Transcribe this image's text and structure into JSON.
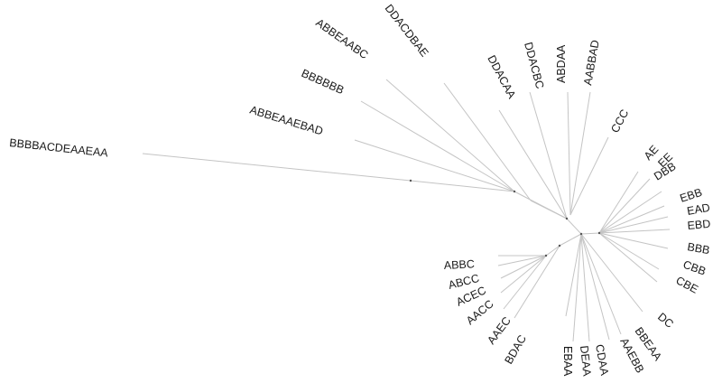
{
  "tree": {
    "type": "unrooted phylogenetic tree",
    "leaves": [
      "BBBBACDEAAEAA",
      "ABBEAAEBAD",
      "BBBBBB",
      "ABBEAABC",
      "DDACDBAE",
      "DDACAA",
      "DDACBC",
      "ABDAA",
      "AABBAD",
      "CCC",
      "AE",
      "EE",
      "DBB",
      "EBB",
      "EAD",
      "EBD",
      "BBB",
      "CBB",
      "CBE",
      "DC",
      "BBEAA",
      "AAEBB",
      "CDAA",
      "DEAA",
      "EBAA",
      "BDAC",
      "AAEC",
      "AACC",
      "ACEC",
      "ABCC",
      "ABBC"
    ]
  }
}
